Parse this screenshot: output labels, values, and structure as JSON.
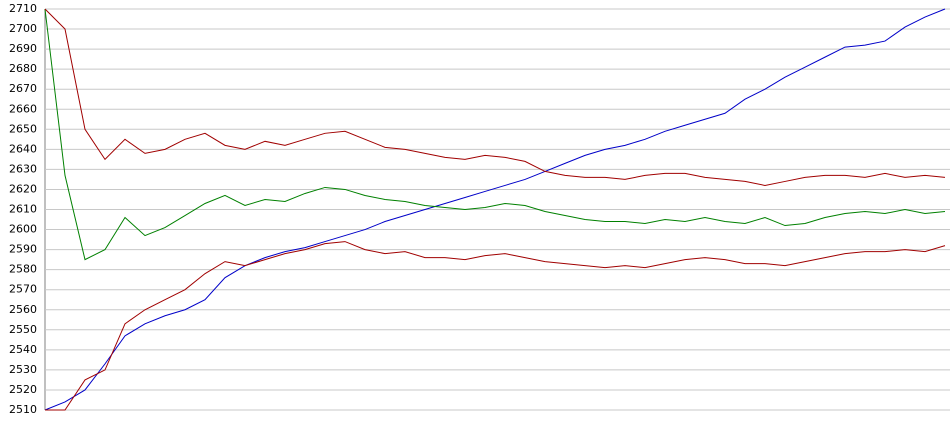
{
  "chart_data": {
    "type": "line",
    "categories": [
      null,
      null,
      null,
      null,
      null,
      null,
      null,
      null,
      null,
      null,
      null,
      null,
      null,
      null,
      null,
      null,
      null,
      null,
      null,
      null,
      null,
      null,
      null,
      null,
      null,
      null,
      null,
      null,
      null,
      null,
      null,
      null,
      null,
      null,
      null,
      null,
      null,
      null,
      null,
      null,
      null,
      null,
      null,
      null,
      null,
      null
    ],
    "series": [
      {
        "color": "#0000c8",
        "values": [
          2510,
          2514,
          2520,
          2533,
          2547,
          2553,
          2557,
          2560,
          2565,
          2576,
          2582,
          2586,
          2589,
          2591,
          2594,
          2597,
          2600,
          2604,
          2607,
          2610,
          2613,
          2616,
          2619,
          2622,
          2625,
          2629,
          2633,
          2637,
          2640,
          2642,
          2645,
          2649,
          2652,
          2655,
          2658,
          2665,
          2670,
          2676,
          2681,
          2686,
          2691,
          2692,
          2694,
          2701,
          2706,
          2710
        ]
      },
      {
        "color": "#008000",
        "values": [
          2710,
          2627,
          2585,
          2590,
          2606,
          2597,
          2601,
          2607,
          2613,
          2617,
          2612,
          2615,
          2614,
          2618,
          2621,
          2620,
          2617,
          2615,
          2614,
          2612,
          2611,
          2610,
          2611,
          2613,
          2612,
          2609,
          2607,
          2605,
          2604,
          2604,
          2603,
          2605,
          2604,
          2606,
          2604,
          2603,
          2606,
          2602,
          2603,
          2606,
          2608,
          2609,
          2608,
          2610,
          2608,
          2609
        ]
      },
      {
        "color": "#a00000",
        "values": [
          2710,
          2700,
          2650,
          2635,
          2645,
          2638,
          2640,
          2645,
          2648,
          2642,
          2640,
          2644,
          2642,
          2645,
          2648,
          2649,
          2645,
          2641,
          2640,
          2638,
          2636,
          2635,
          2637,
          2636,
          2634,
          2629,
          2627,
          2626,
          2626,
          2625,
          2627,
          2628,
          2628,
          2626,
          2625,
          2624,
          2622,
          2624,
          2626,
          2627,
          2627,
          2626,
          2628,
          2626,
          2627,
          2626
        ]
      },
      {
        "color": "#a00000",
        "values": [
          2510,
          2510,
          2525,
          2530,
          2553,
          2560,
          2565,
          2570,
          2578,
          2584,
          2582,
          2585,
          2588,
          2590,
          2593,
          2594,
          2590,
          2588,
          2589,
          2586,
          2586,
          2585,
          2587,
          2588,
          2586,
          2584,
          2583,
          2582,
          2581,
          2582,
          2581,
          2583,
          2585,
          2586,
          2585,
          2583,
          2583,
          2582,
          2584,
          2586,
          2588,
          2589,
          2589,
          2590,
          2589,
          2592
        ]
      }
    ],
    "ylim": [
      2510,
      2710
    ],
    "yticks": [
      2510,
      2520,
      2530,
      2540,
      2550,
      2560,
      2570,
      2580,
      2590,
      2600,
      2610,
      2620,
      2630,
      2640,
      2650,
      2660,
      2670,
      2680,
      2690,
      2700,
      2710
    ],
    "grid": true
  }
}
